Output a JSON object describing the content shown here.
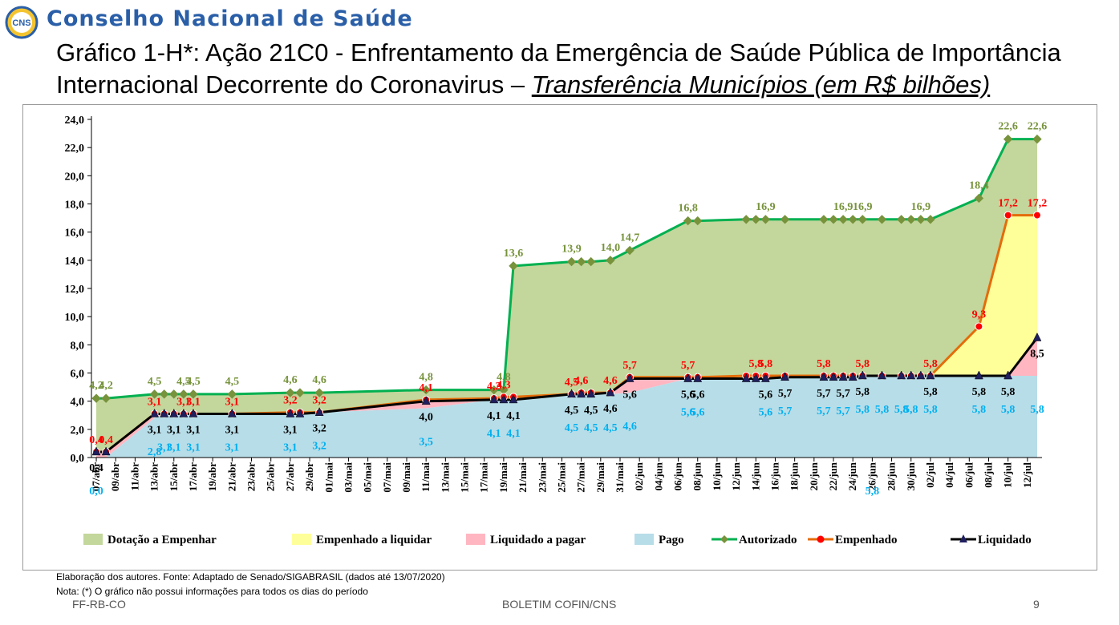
{
  "header": {
    "logo_text": "CNS",
    "org_name": "Conselho Nacional de Saúde",
    "title_main": "Gráfico 1-H*: Ação 21C0 - Enfrentamento da Emergência de Saúde Pública de Importância Internacional Decorrente do Coronavirus",
    "title_dash": " – ",
    "title_sub": "Transferência Municípios (em R$ bilhões)"
  },
  "footer": {
    "source": "Elaboração dos autores. Fonte: Adaptado de Senado/SIGABRASIL (dados até 13/07/2020)",
    "note": "Nota: (*) O gráfico não possui informações para todos os dias do período",
    "left": "FF-RB-CO",
    "center": "BOLETIM COFIN/CNS",
    "page": "9"
  },
  "colors": {
    "dotacao_fill": "#c3d69b",
    "empenhado_liq_fill": "#ffff99",
    "liquidado_pagar_fill": "#ffb6c1",
    "pago_fill": "#b7dde8",
    "autorizado_line": "#00b050",
    "autorizado_marker": "#77933c",
    "empenhado_line": "#e46c0a",
    "empenhado_marker": "#ff0000",
    "liquidado_line": "#000000",
    "liquidado_marker": "#1f1f5f",
    "label_autorizado": "#77933c",
    "label_empenhado": "#ff0000",
    "label_liquidado": "#000000",
    "label_pago": "#00b0f0"
  },
  "chart_data": {
    "type": "area",
    "ylim": [
      0,
      24
    ],
    "yticks": [
      "0,0",
      "2,0",
      "4,0",
      "6,0",
      "8,0",
      "10,0",
      "12,0",
      "14,0",
      "16,0",
      "18,0",
      "20,0",
      "22,0",
      "24,0"
    ],
    "xtick_labels": [
      "07/abr",
      "09/abr",
      "11/abr",
      "13/abr",
      "15/abr",
      "17/abr",
      "19/abr",
      "21/abr",
      "23/abr",
      "25/abr",
      "27/abr",
      "29/abr",
      "01/mai",
      "03/mai",
      "05/mai",
      "07/mai",
      "09/mai",
      "11/mai",
      "13/mai",
      "15/mai",
      "17/mai",
      "19/mai",
      "21/mai",
      "23/mai",
      "25/mai",
      "27/mai",
      "29/mai",
      "31/mai",
      "02/jun",
      "04/jun",
      "06/jun",
      "08/jun",
      "10/jun",
      "12/jun",
      "14/jun",
      "16/jun",
      "18/jun",
      "20/jun",
      "22/jun",
      "24/jun",
      "26/jun",
      "28/jun",
      "30/jun",
      "02/jul",
      "04/jul",
      "06/jul",
      "08/jul",
      "10/jul",
      "12/jul"
    ],
    "x": [
      "07/abr",
      "08/abr",
      "13/abr",
      "14/abr",
      "15/abr",
      "16/abr",
      "17/abr",
      "21/abr",
      "27/abr",
      "28/abr",
      "30/abr",
      "11/mai",
      "18/mai",
      "19/mai",
      "20/mai",
      "26/mai",
      "27/mai",
      "28/mai",
      "30/mai",
      "01/jun",
      "07/jun",
      "08/jun",
      "13/jun",
      "14/jun",
      "15/jun",
      "17/jun",
      "21/jun",
      "22/jun",
      "23/jun",
      "24/jun",
      "25/jun",
      "27/jun",
      "29/jun",
      "30/jun",
      "01/jul",
      "02/jul",
      "07/jul",
      "10/jul",
      "13/jul"
    ],
    "series": [
      {
        "name": "Autorizado",
        "values": [
          4.2,
          4.2,
          4.5,
          4.5,
          4.5,
          4.5,
          4.5,
          4.5,
          4.6,
          4.6,
          4.6,
          4.8,
          4.8,
          4.8,
          13.6,
          13.9,
          13.9,
          13.9,
          14.0,
          14.7,
          16.8,
          16.8,
          16.9,
          16.9,
          16.9,
          16.9,
          16.9,
          16.9,
          16.9,
          16.9,
          16.9,
          16.9,
          16.9,
          16.9,
          16.9,
          16.9,
          18.4,
          22.6,
          22.6
        ]
      },
      {
        "name": "Empenhado",
        "values": [
          0.4,
          0.4,
          3.1,
          3.1,
          3.1,
          3.1,
          3.1,
          3.1,
          3.2,
          3.2,
          3.2,
          4.1,
          4.2,
          4.3,
          4.3,
          4.5,
          4.6,
          4.6,
          4.6,
          5.7,
          5.7,
          5.7,
          5.8,
          5.8,
          5.8,
          5.8,
          5.8,
          5.8,
          5.8,
          5.8,
          5.8,
          5.8,
          5.8,
          5.8,
          5.8,
          5.8,
          9.3,
          17.2,
          17.2
        ]
      },
      {
        "name": "Liquidado",
        "values": [
          0.4,
          0.4,
          3.1,
          3.1,
          3.1,
          3.1,
          3.1,
          3.1,
          3.1,
          3.1,
          3.2,
          4.0,
          4.1,
          4.1,
          4.1,
          4.5,
          4.5,
          4.5,
          4.6,
          5.6,
          5.6,
          5.6,
          5.6,
          5.6,
          5.6,
          5.7,
          5.7,
          5.7,
          5.7,
          5.7,
          5.8,
          5.8,
          5.8,
          5.8,
          5.8,
          5.8,
          5.8,
          5.8,
          8.5
        ]
      },
      {
        "name": "Pago",
        "values": [
          0.0,
          0.0,
          2.8,
          3.1,
          3.1,
          3.1,
          3.1,
          3.1,
          3.1,
          3.1,
          3.2,
          3.5,
          4.1,
          4.1,
          4.1,
          4.5,
          4.5,
          4.5,
          4.5,
          4.6,
          5.6,
          5.6,
          5.6,
          5.6,
          5.6,
          5.7,
          5.7,
          5.7,
          5.7,
          5.7,
          5.8,
          5.8,
          5.8,
          5.8,
          5.8,
          5.8,
          5.8,
          5.8,
          5.8
        ]
      }
    ],
    "labels": {
      "autorizado": [
        {
          "x": "07/abr",
          "text": "4,2"
        },
        {
          "x": "08/abr",
          "text": "4,2"
        },
        {
          "x": "13/abr",
          "text": "4,5"
        },
        {
          "x": "16/abr",
          "text": "4,5"
        },
        {
          "x": "17/abr",
          "text": "4,5"
        },
        {
          "x": "21/abr",
          "text": "4,5"
        },
        {
          "x": "27/abr",
          "text": "4,6"
        },
        {
          "x": "30/abr",
          "text": "4,6"
        },
        {
          "x": "11/mai",
          "text": "4,8"
        },
        {
          "x": "19/mai",
          "text": "4,8"
        },
        {
          "x": "20/mai",
          "text": "13,6"
        },
        {
          "x": "26/mai",
          "text": "13,9"
        },
        {
          "x": "30/mai",
          "text": "14,0"
        },
        {
          "x": "01/jun",
          "text": "14,7"
        },
        {
          "x": "07/jun",
          "text": "16,8"
        },
        {
          "x": "15/jun",
          "text": "16,9"
        },
        {
          "x": "23/jun",
          "text": "16,9"
        },
        {
          "x": "25/jun",
          "text": "16,9"
        },
        {
          "x": "01/jul",
          "text": "16,9"
        },
        {
          "x": "07/jul",
          "text": "18,4"
        },
        {
          "x": "10/jul",
          "text": "22,6"
        },
        {
          "x": "13/jul",
          "text": "22,6"
        }
      ],
      "empenhado": [
        {
          "x": "07/abr",
          "text": "0,4"
        },
        {
          "x": "08/abr",
          "text": "0,4"
        },
        {
          "x": "13/abr",
          "text": "3,1"
        },
        {
          "x": "16/abr",
          "text": "3,1"
        },
        {
          "x": "17/abr",
          "text": "3,1"
        },
        {
          "x": "21/abr",
          "text": "3,1"
        },
        {
          "x": "27/abr",
          "text": "3,2"
        },
        {
          "x": "30/abr",
          "text": "3,2"
        },
        {
          "x": "11/mai",
          "text": "4,1"
        },
        {
          "x": "18/mai",
          "text": "4,2"
        },
        {
          "x": "19/mai",
          "text": "4,3"
        },
        {
          "x": "26/mai",
          "text": "4,5"
        },
        {
          "x": "27/mai",
          "text": "4,6"
        },
        {
          "x": "30/mai",
          "text": "4,6"
        },
        {
          "x": "01/jun",
          "text": "5,7"
        },
        {
          "x": "07/jun",
          "text": "5,7"
        },
        {
          "x": "14/jun",
          "text": "5,8"
        },
        {
          "x": "15/jun",
          "text": "5,8"
        },
        {
          "x": "21/jun",
          "text": "5,8"
        },
        {
          "x": "25/jun",
          "text": "5,8"
        },
        {
          "x": "02/jul",
          "text": "5,8"
        },
        {
          "x": "07/jul",
          "text": "9,3"
        },
        {
          "x": "10/jul",
          "text": "17,2"
        },
        {
          "x": "13/jul",
          "text": "17,2"
        }
      ],
      "liquidado": [
        {
          "x": "07/abr",
          "text": "0,4"
        },
        {
          "x": "13/abr",
          "text": "3,1"
        },
        {
          "x": "15/abr",
          "text": "3,1"
        },
        {
          "x": "17/abr",
          "text": "3,1"
        },
        {
          "x": "21/abr",
          "text": "3,1"
        },
        {
          "x": "27/abr",
          "text": "3,1"
        },
        {
          "x": "30/abr",
          "text": "3,2"
        },
        {
          "x": "11/mai",
          "text": "4,0"
        },
        {
          "x": "18/mai",
          "text": "4,1"
        },
        {
          "x": "20/mai",
          "text": "4,1"
        },
        {
          "x": "26/mai",
          "text": "4,5"
        },
        {
          "x": "28/mai",
          "text": "4,5"
        },
        {
          "x": "30/mai",
          "text": "4,6"
        },
        {
          "x": "01/jun",
          "text": "5,6"
        },
        {
          "x": "07/jun",
          "text": "5,6"
        },
        {
          "x": "08/jun",
          "text": "5,6"
        },
        {
          "x": "15/jun",
          "text": "5,6"
        },
        {
          "x": "17/jun",
          "text": "5,7"
        },
        {
          "x": "21/jun",
          "text": "5,7"
        },
        {
          "x": "23/jun",
          "text": "5,7"
        },
        {
          "x": "25/jun",
          "text": "5,8"
        },
        {
          "x": "02/jul",
          "text": "5,8"
        },
        {
          "x": "07/jul",
          "text": "5,8"
        },
        {
          "x": "10/jul",
          "text": "5,8"
        },
        {
          "x": "13/jul",
          "text": "8,5"
        }
      ],
      "pago": [
        {
          "x": "07/abr",
          "text": "0,0"
        },
        {
          "x": "13/abr",
          "text": "2,8"
        },
        {
          "x": "14/abr",
          "text": "3,1"
        },
        {
          "x": "15/abr",
          "text": "3,1"
        },
        {
          "x": "17/abr",
          "text": "3,1"
        },
        {
          "x": "21/abr",
          "text": "3,1"
        },
        {
          "x": "27/abr",
          "text": "3,1"
        },
        {
          "x": "30/abr",
          "text": "3,2"
        },
        {
          "x": "11/mai",
          "text": "3,5"
        },
        {
          "x": "18/mai",
          "text": "4,1"
        },
        {
          "x": "20/mai",
          "text": "4,1"
        },
        {
          "x": "26/mai",
          "text": "4,5"
        },
        {
          "x": "28/mai",
          "text": "4,5"
        },
        {
          "x": "30/mai",
          "text": "4,5"
        },
        {
          "x": "01/jun",
          "text": "4,6"
        },
        {
          "x": "07/jun",
          "text": "5,6"
        },
        {
          "x": "08/jun",
          "text": "5,6"
        },
        {
          "x": "15/jun",
          "text": "5,6"
        },
        {
          "x": "17/jun",
          "text": "5,7"
        },
        {
          "x": "21/jun",
          "text": "5,7"
        },
        {
          "x": "23/jun",
          "text": "5,7"
        },
        {
          "x": "25/jun",
          "text": "5,8"
        },
        {
          "x": "26/jun",
          "text": "5,8"
        },
        {
          "x": "27/jun",
          "text": "5,8"
        },
        {
          "x": "29/jun",
          "text": "5,8"
        },
        {
          "x": "30/jun",
          "text": "5,8"
        },
        {
          "x": "02/jul",
          "text": "5,8"
        },
        {
          "x": "07/jul",
          "text": "5,8"
        },
        {
          "x": "10/jul",
          "text": "5,8"
        },
        {
          "x": "13/jul",
          "text": "5,8"
        }
      ]
    },
    "legend": {
      "position": "bottom",
      "items": [
        {
          "label": "Dotação a Empenhar",
          "kind": "area",
          "color_key": "dotacao_fill"
        },
        {
          "label": "Empenhado a liquidar",
          "kind": "area",
          "color_key": "empenhado_liq_fill"
        },
        {
          "label": "Liquidado a pagar",
          "kind": "area",
          "color_key": "liquidado_pagar_fill"
        },
        {
          "label": "Pago",
          "kind": "area",
          "color_key": "pago_fill"
        },
        {
          "label": "Autorizado",
          "kind": "line-diamond",
          "color_key": "autorizado_line"
        },
        {
          "label": "Empenhado",
          "kind": "line-circle",
          "color_key": "empenhado_line"
        },
        {
          "label": "Liquidado",
          "kind": "line-triangle",
          "color_key": "liquidado_line"
        }
      ]
    },
    "grid": false
  }
}
